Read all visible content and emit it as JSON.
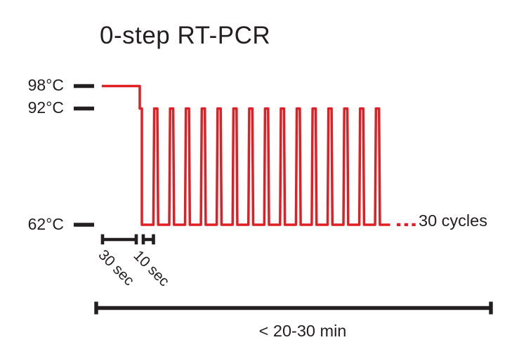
{
  "figure": {
    "title": "0-step RT-PCR"
  },
  "colors": {
    "profile_red": "#e01f24",
    "ink_black": "#231f20",
    "background": "#ffffff"
  },
  "temperature_axis": {
    "ticks": [
      {
        "label": "98°C",
        "temp_c": 98
      },
      {
        "label": "92°C",
        "temp_c": 92
      },
      {
        "label": "62°C",
        "temp_c": 62
      }
    ]
  },
  "time_annotations": {
    "initial_hold": "30 sec",
    "cycle_time": "10 sec",
    "total_runtime": "< 20-30 min"
  },
  "cycles_annotation": {
    "ellipsis": ". . .",
    "label": "30 cycles"
  },
  "chart_data": {
    "type": "line",
    "title": "0-step RT-PCR",
    "y_tick_labels": [
      "98°C",
      "92°C",
      "62°C"
    ],
    "levels_c": {
      "hold": 98,
      "peak": 92,
      "base": 62
    },
    "profile": [
      {
        "step": "initial hold",
        "temperature_c": 98,
        "duration": "30 sec"
      },
      {
        "step": "brief step during ramp down",
        "temperature_c": 92
      },
      {
        "step": "two-temperature cycling",
        "high_c": 92,
        "low_c": 62,
        "time_per_cycle": "10 sec",
        "total_cycles": 30
      },
      {
        "step": "total runtime",
        "duration": "< 20-30 min"
      }
    ],
    "pulses_drawn": 15,
    "legend": "none",
    "grid": false
  }
}
